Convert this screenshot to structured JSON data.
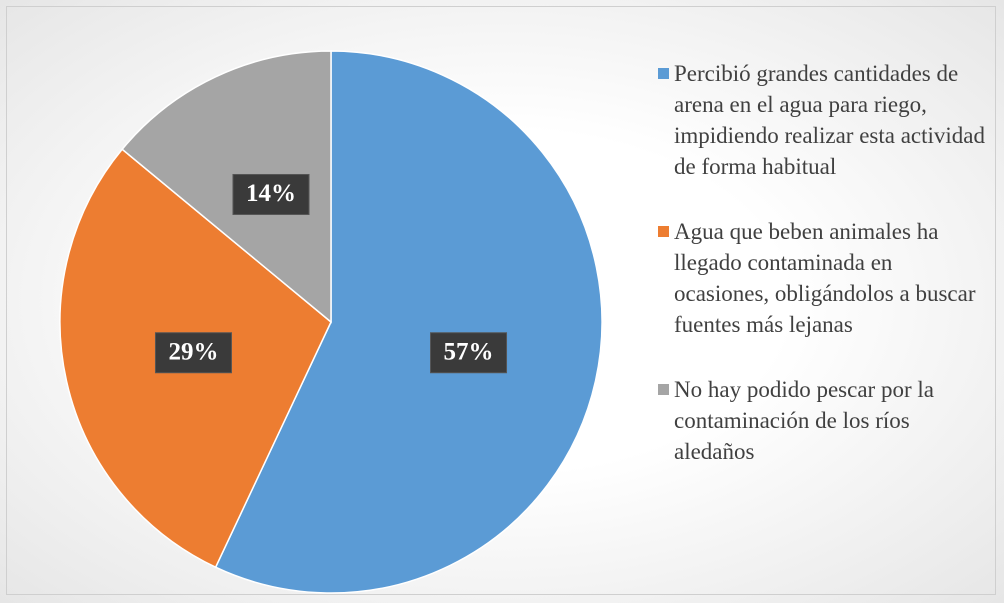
{
  "chart_data": {
    "type": "pie",
    "categories": [
      "Percibió grandes cantidades de arena en el agua para riego, impidiendo realizar esta actividad de forma habitual",
      "Agua que beben animales ha llegado contaminada en ocasiones, obligándolos a buscar fuentes más lejanas",
      "No hay podido pescar por la contaminación de los ríos aledaños"
    ],
    "values": [
      57,
      29,
      14
    ],
    "value_labels": [
      "57%",
      "29%",
      "14%"
    ],
    "colors": [
      "#5b9bd5",
      "#ed7d31",
      "#a5a5a5"
    ],
    "legend": "right"
  }
}
